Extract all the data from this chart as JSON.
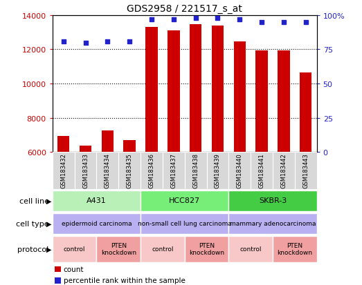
{
  "title": "GDS2958 / 221517_s_at",
  "samples": [
    "GSM183432",
    "GSM183433",
    "GSM183434",
    "GSM183435",
    "GSM183436",
    "GSM183437",
    "GSM183438",
    "GSM183439",
    "GSM183440",
    "GSM183441",
    "GSM183442",
    "GSM183443"
  ],
  "counts": [
    6950,
    6380,
    7280,
    6720,
    13300,
    13100,
    13450,
    13380,
    12480,
    11950,
    11950,
    10650
  ],
  "percentiles": [
    81,
    80,
    81,
    81,
    97,
    97,
    98,
    98,
    97,
    95,
    95,
    95
  ],
  "ylim_left": [
    6000,
    14000
  ],
  "ylim_right": [
    0,
    100
  ],
  "yticks_left": [
    6000,
    8000,
    10000,
    12000,
    14000
  ],
  "yticks_right": [
    0,
    25,
    50,
    75,
    100
  ],
  "bar_color": "#cc0000",
  "dot_color": "#2222cc",
  "cell_line_groups": [
    {
      "label": "A431",
      "start": 0,
      "end": 3,
      "color": "#c0f0c0"
    },
    {
      "label": "HCC827",
      "start": 4,
      "end": 7,
      "color": "#88ee88"
    },
    {
      "label": "SKBR-3",
      "start": 8,
      "end": 11,
      "color": "#44cc44"
    }
  ],
  "cell_type_groups": [
    {
      "label": "epidermoid carcinoma",
      "start": 0,
      "end": 3,
      "color": "#c0b8f8"
    },
    {
      "label": "non-small cell lung carcinoma",
      "start": 4,
      "end": 7,
      "color": "#b8b0f0"
    },
    {
      "label": "mammary adenocarcinoma",
      "start": 8,
      "end": 11,
      "color": "#c0b8f8"
    }
  ],
  "protocol_groups": [
    {
      "label": "control",
      "start": 0,
      "end": 1,
      "color": "#f8c8c8"
    },
    {
      "label": "PTEN\nknockdown",
      "start": 2,
      "end": 3,
      "color": "#f0a0a0"
    },
    {
      "label": "control",
      "start": 4,
      "end": 5,
      "color": "#f8c8c8"
    },
    {
      "label": "PTEN\nknockdown",
      "start": 6,
      "end": 7,
      "color": "#f0a0a0"
    },
    {
      "label": "control",
      "start": 8,
      "end": 9,
      "color": "#f8c8c8"
    },
    {
      "label": "PTEN\nknockdown",
      "start": 10,
      "end": 11,
      "color": "#f0a0a0"
    }
  ],
  "legend_count_color": "#cc0000",
  "legend_dot_color": "#2222cc",
  "background_color": "#ffffff",
  "row_labels": [
    "cell line",
    "cell type",
    "protocol"
  ],
  "row_label_fontsize": 8,
  "title_fontsize": 10,
  "tick_fontsize": 8,
  "sample_fontsize": 6,
  "annotation_fontsize": 8
}
